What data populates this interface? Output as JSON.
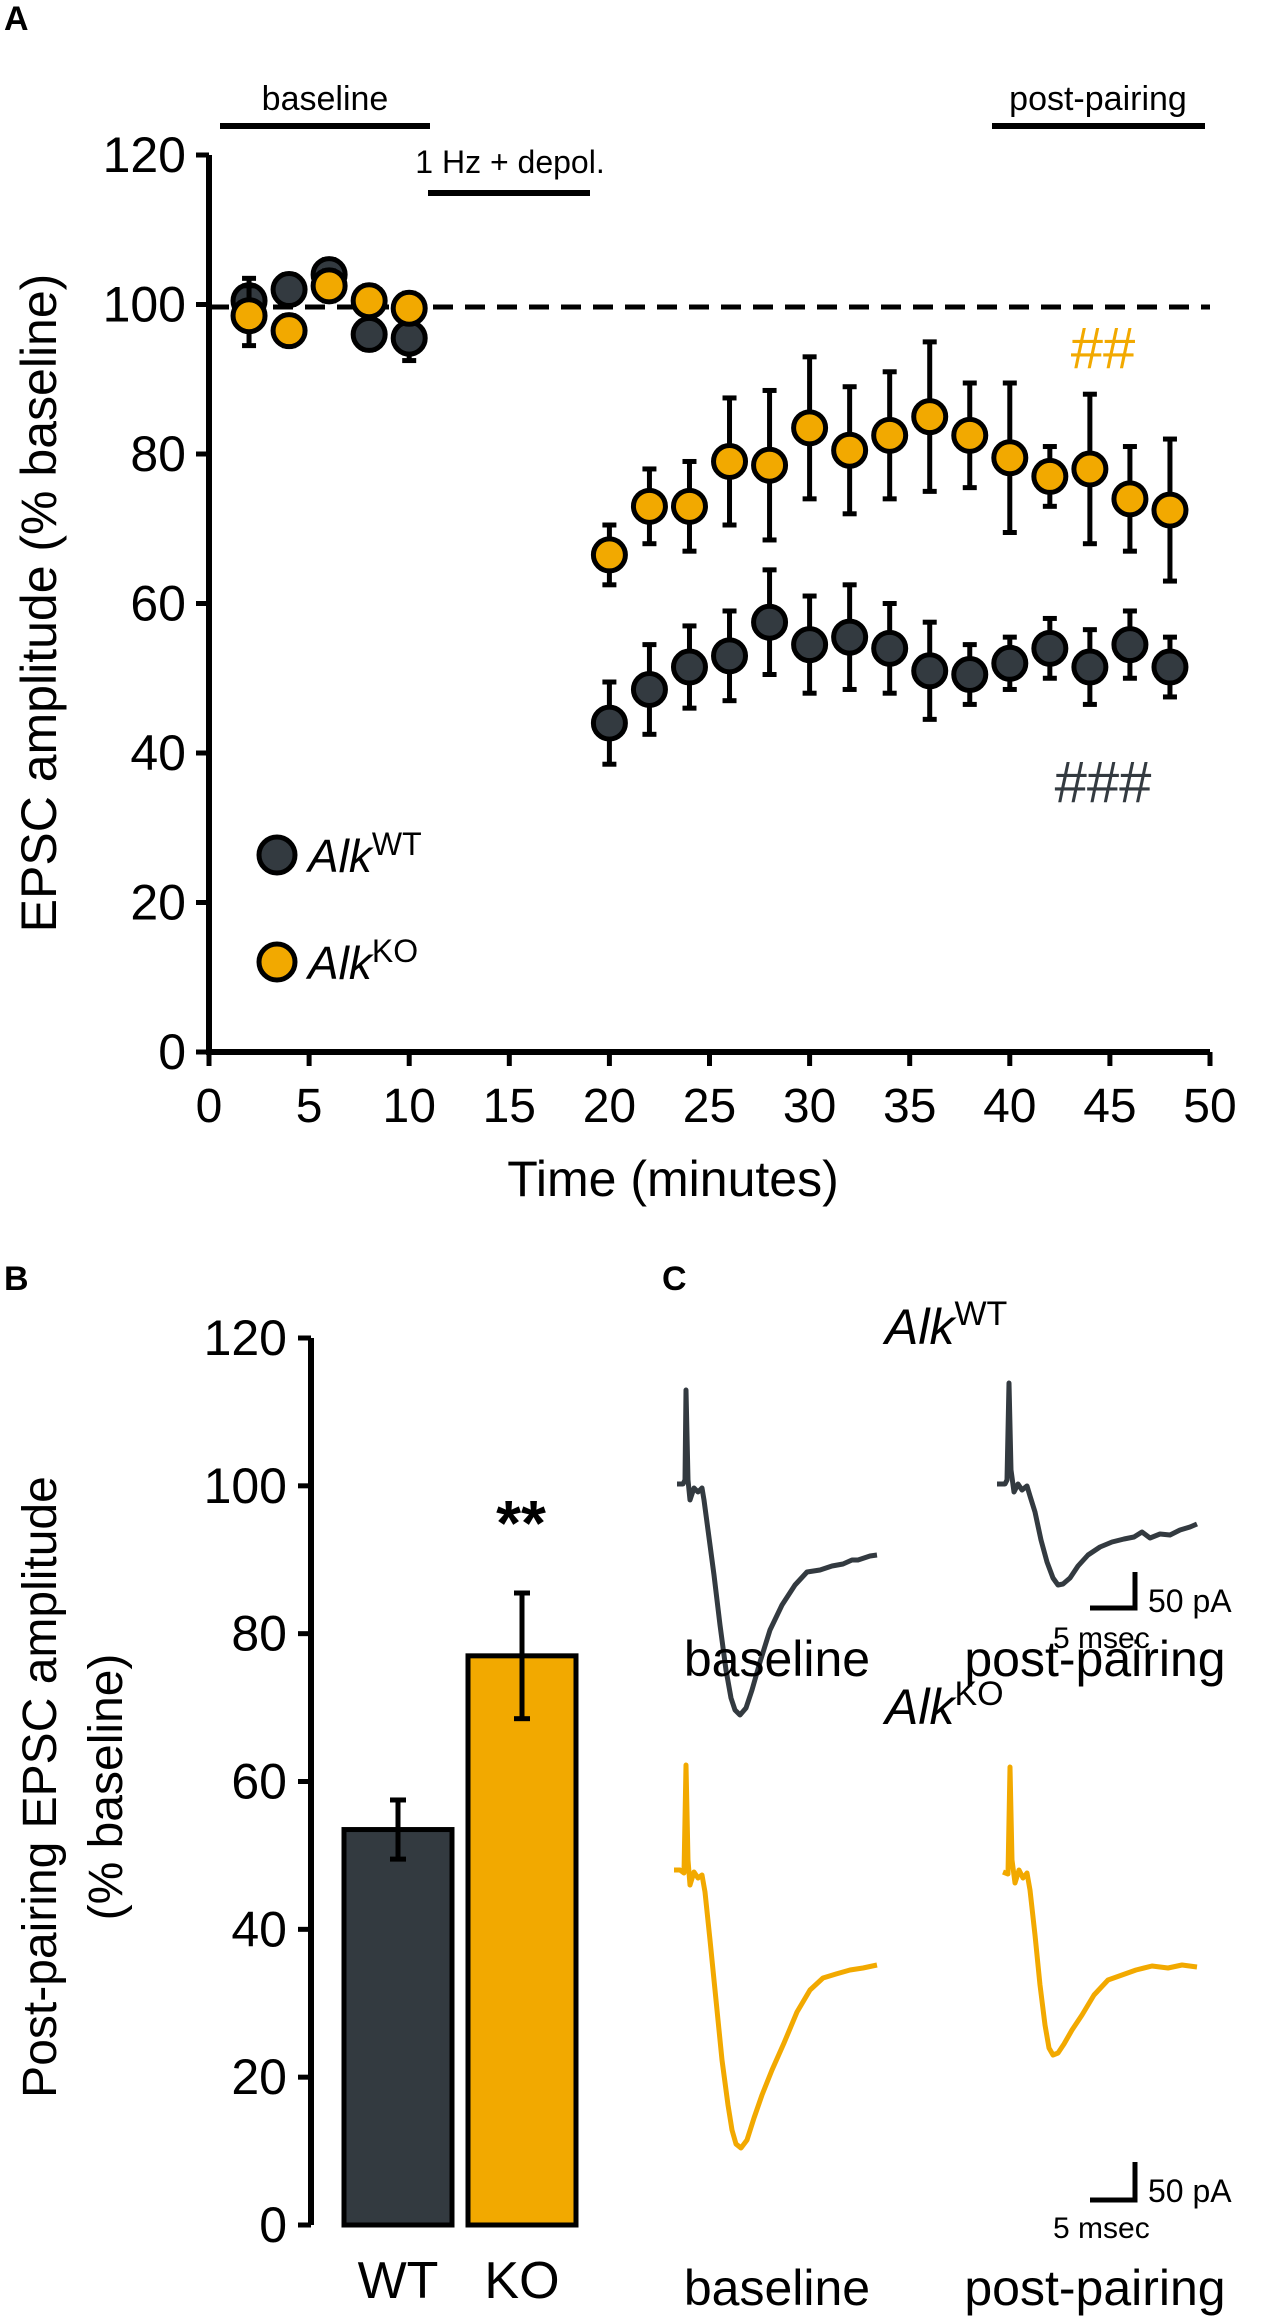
{
  "colors": {
    "wt": "#333a40",
    "ko": "#f2a900",
    "axis": "#000000"
  },
  "panels": {
    "a": "A",
    "b": "B",
    "c": "C"
  },
  "chart_data": [
    {
      "id": "A",
      "type": "scatter",
      "xlabel": "Time (minutes)",
      "ylabel": "EPSC amplitude (% baseline)",
      "xlim": [
        0,
        50
      ],
      "ylim": [
        0,
        120
      ],
      "xticks": [
        "0",
        "5",
        "10",
        "15",
        "20",
        "25",
        "30",
        "35",
        "40",
        "45",
        "50"
      ],
      "yticks": [
        "0",
        "20",
        "40",
        "60",
        "80",
        "100",
        "120"
      ],
      "reference_line": 100,
      "periods": [
        {
          "label": "baseline",
          "x": [
            1,
            11
          ]
        },
        {
          "label": "1 Hz + depol.",
          "x": [
            11,
            19
          ]
        },
        {
          "label": "post-pairing",
          "x": [
            39,
            50
          ]
        }
      ],
      "legend": [
        {
          "gene": "Alk",
          "sup": "WT",
          "series": "wt"
        },
        {
          "gene": "Alk",
          "sup": "KO",
          "series": "ko"
        }
      ],
      "significance": {
        "wt": "###",
        "ko": "##"
      },
      "series": [
        {
          "name": "AlkWT",
          "key": "wt",
          "x": [
            2,
            4,
            6,
            8,
            10,
            20,
            22,
            24,
            26,
            28,
            30,
            32,
            34,
            36,
            38,
            40,
            42,
            44,
            46,
            48
          ],
          "y": [
            100.5,
            102,
            104,
            96,
            95.5,
            44,
            48.5,
            51.5,
            53,
            57.5,
            54.5,
            55.5,
            54,
            51,
            50.5,
            52,
            54,
            51.5,
            54.5,
            51.5
          ],
          "err": [
            3,
            2,
            2,
            2,
            3,
            5.5,
            6,
            5.5,
            6,
            7,
            6.5,
            7,
            6,
            6.5,
            4,
            3.5,
            4,
            5,
            4.5,
            4
          ]
        },
        {
          "name": "AlkKO",
          "key": "ko",
          "x": [
            2,
            4,
            6,
            8,
            10,
            20,
            22,
            24,
            26,
            28,
            30,
            32,
            34,
            36,
            38,
            40,
            42,
            44,
            46,
            48
          ],
          "y": [
            98.5,
            96.5,
            102.5,
            100.5,
            99.5,
            66.5,
            73,
            73,
            79,
            78.5,
            83.5,
            80.5,
            82.5,
            85,
            82.5,
            79.5,
            77,
            78,
            74,
            72.5
          ],
          "err": [
            4,
            2,
            2,
            2,
            2,
            4,
            5,
            6,
            8.5,
            10,
            9.5,
            8.5,
            8.5,
            10,
            7,
            10,
            4,
            10,
            7,
            9.5
          ]
        }
      ]
    },
    {
      "id": "B",
      "type": "bar",
      "ylabel": [
        "Post-pairing EPSC amplitude",
        "(% baseline)"
      ],
      "ylim": [
        0,
        120
      ],
      "yticks": [
        "0",
        "20",
        "40",
        "60",
        "80",
        "100",
        "120"
      ],
      "categories": [
        "WT",
        "KO"
      ],
      "values": [
        53.5,
        77
      ],
      "errors": [
        4,
        8.5
      ],
      "significance": "**"
    }
  ],
  "traces": {
    "groups": [
      {
        "gene": "Alk",
        "sup": "WT",
        "key": "wt"
      },
      {
        "gene": "Alk",
        "sup": "KO",
        "key": "ko"
      }
    ],
    "conditions": [
      "baseline",
      "post-pairing"
    ],
    "scale_current": "50 pA",
    "scale_time": "5 msec"
  }
}
